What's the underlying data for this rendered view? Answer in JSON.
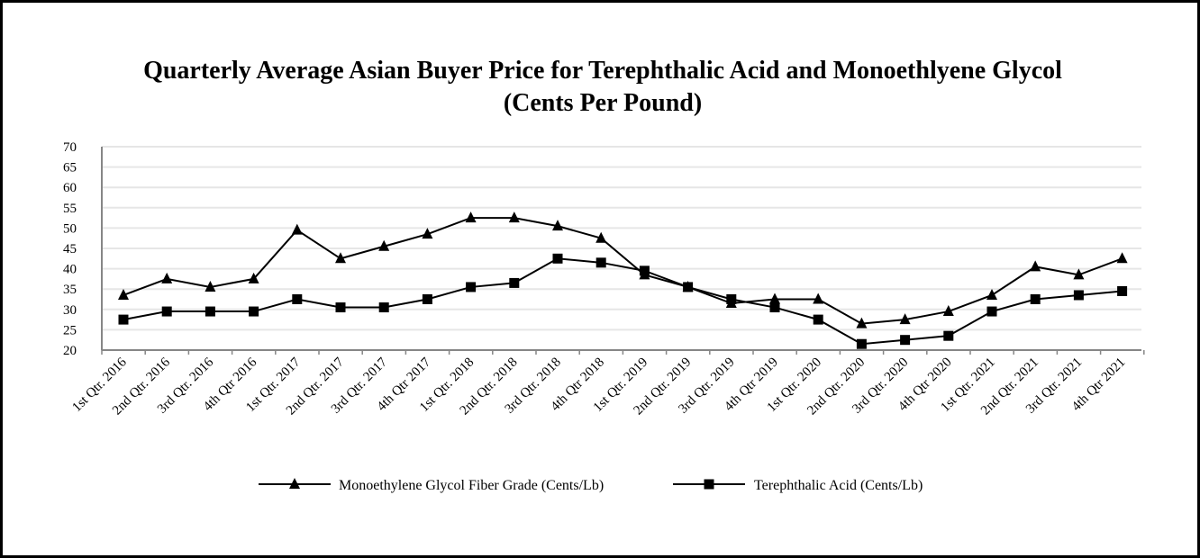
{
  "chart_data": {
    "type": "line",
    "title_lines": [
      "Quarterly Average Asian Buyer Price for Terephthalic Acid and Monoethlyene Glycol",
      "(Cents Per Pound)"
    ],
    "categories": [
      "1st Qtr. 2016",
      "2nd Qtr. 2016",
      "3rd Qtr. 2016",
      "4th Qtr 2016",
      "1st Qtr. 2017",
      "2nd Qtr. 2017",
      "3rd Qtr. 2017",
      "4th Qtr 2017",
      "1st Qtr. 2018",
      "2nd Qtr. 2018",
      "3rd Qtr. 2018",
      "4th Qtr 2018",
      "1st Qtr. 2019",
      "2nd Qtr. 2019",
      "3rd Qtr. 2019",
      "4th Qtr 2019",
      "1st Qtr. 2020",
      "2nd Qtr. 2020",
      "3rd Qtr. 2020",
      "4th Qtr 2020",
      "1st Qtr. 2021",
      "2nd Qtr. 2021",
      "3rd Qtr. 2021",
      "4th Qtr 2021"
    ],
    "ylim": [
      20,
      70
    ],
    "yticks": [
      20,
      25,
      30,
      35,
      40,
      45,
      50,
      55,
      60,
      65,
      70
    ],
    "grid": true,
    "legend_position": "bottom",
    "series": [
      {
        "name": "Monoethylene Glycol Fiber Grade (Cents/Lb)",
        "marker": "triangle",
        "color": "#000000",
        "values": [
          33.5,
          37.5,
          35.5,
          37.5,
          49.5,
          42.5,
          45.5,
          48.5,
          52.5,
          52.5,
          50.5,
          47.5,
          38.5,
          35.5,
          31.5,
          32.5,
          32.5,
          26.5,
          27.5,
          29.5,
          33.5,
          40.5,
          38.5,
          42.5
        ]
      },
      {
        "name": "Terephthalic Acid (Cents/Lb)",
        "marker": "square",
        "color": "#000000",
        "values": [
          27.5,
          29.5,
          29.5,
          29.5,
          32.5,
          30.5,
          30.5,
          32.5,
          35.5,
          36.5,
          42.5,
          41.5,
          39.5,
          35.5,
          32.5,
          30.5,
          27.5,
          21.5,
          22.5,
          23.5,
          29.5,
          32.5,
          33.5,
          34.5
        ]
      }
    ]
  }
}
